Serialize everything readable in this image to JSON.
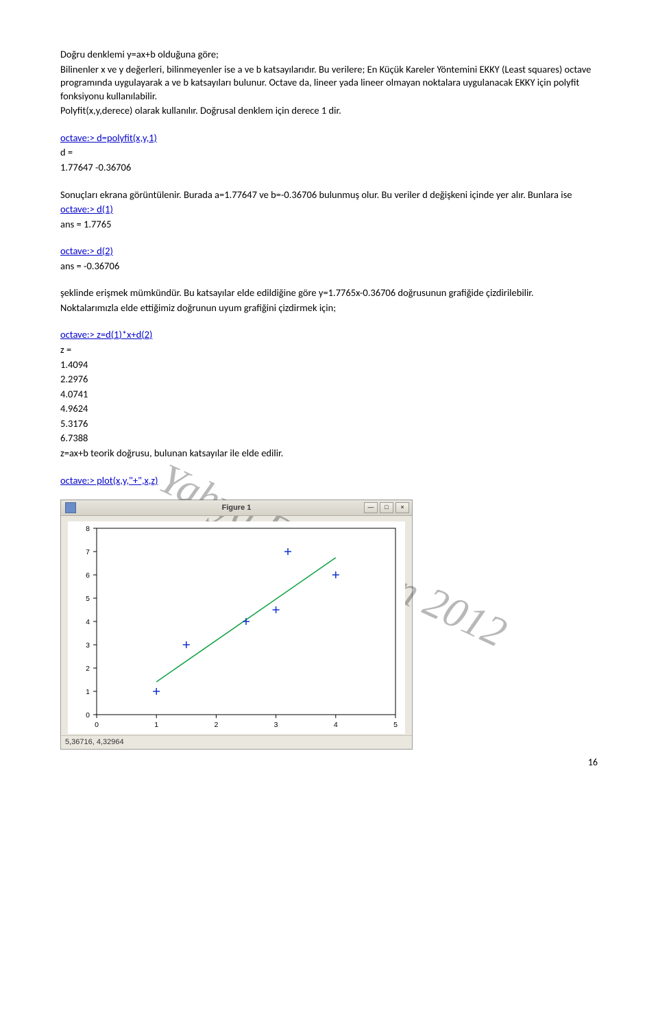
{
  "para1": {
    "l1": "Doğru denklemi y=ax+b olduğuna göre;",
    "l2": "Bilinenler x ve y değerleri, bilinmeyenler ise a ve b katsayılarıdır. Bu verilere; En Küçük Kareler Yöntemini EKKY (Least squares) octave programında uygulayarak a ve b katsayıları bulunur. Octave da, lineer yada lineer olmayan noktalara uygulanacak EKKY için polyfit fonksiyonu kullanılabilir.",
    "l3": "Polyfit(x,y,derece) olarak kullanılır. Doğrusal denklem için derece 1 dir."
  },
  "cmd1": "octave:> d=polyfit(x,y,1)",
  "res1": {
    "a": "d =",
    "b": "  1.77647  -0.36706"
  },
  "para2": "Sonuçları ekrana görüntülenir. Burada a=1.77647 ve b=-0.36706 bulunmuş olur. Bu veriler d değişkeni içinde yer alır. Bunlara ise",
  "cmd2": "octave:> d(1)",
  "res2": "ans =  1.7765",
  "cmd3": "octave:> d(2)",
  "res3": "ans = -0.36706",
  "para3a": "şeklinde erişmek mümkündür. Bu katsayılar elde edildiğine göre y=1.7765x-0.36706 doğrusunun grafiğide çizdirilebilir.",
  "para3b": "Noktalarımızla elde ettiğimiz doğrunun uyum grafiğini çizdirmek için;",
  "cmd4": "octave:> z=d(1)*x+d(2)",
  "res4": {
    "head": "z =",
    "v1": "  1.4094",
    "v2": "  2.2976",
    "v3": "  4.0741",
    "v4": "  4.9624",
    "v5": "  5.3176",
    "v6": "  6.7388"
  },
  "para4": "z=ax+b teorik doğrusu, bulunan katsayılar ile elde edilir.",
  "cmd5": "octave:> plot(x,y,\"+\",x,z)",
  "watermark": "Yahya Demircan 2012",
  "figure": {
    "title": "Figure 1",
    "status": "5,36716,   4,32964",
    "xlim": [
      0,
      5
    ],
    "ylim": [
      0,
      8
    ],
    "xticks": [
      0,
      1,
      2,
      3,
      4,
      5
    ],
    "yticks": [
      0,
      1,
      2,
      3,
      4,
      5,
      6,
      7,
      8
    ],
    "points_x": [
      1.0,
      1.5,
      2.5,
      3.0,
      3.2,
      4.0
    ],
    "points_y": [
      1.0,
      3.0,
      4.0,
      4.5,
      7.0,
      6.0
    ],
    "line_x": [
      1.0,
      4.0
    ],
    "line_y": [
      1.4094,
      6.7388
    ],
    "point_color": "#1030d0",
    "line_color": "#0aa040",
    "axis_color": "#000000",
    "bg_color": "#ffffff",
    "tick_fontsize": 10.5
  },
  "page_number": "16"
}
